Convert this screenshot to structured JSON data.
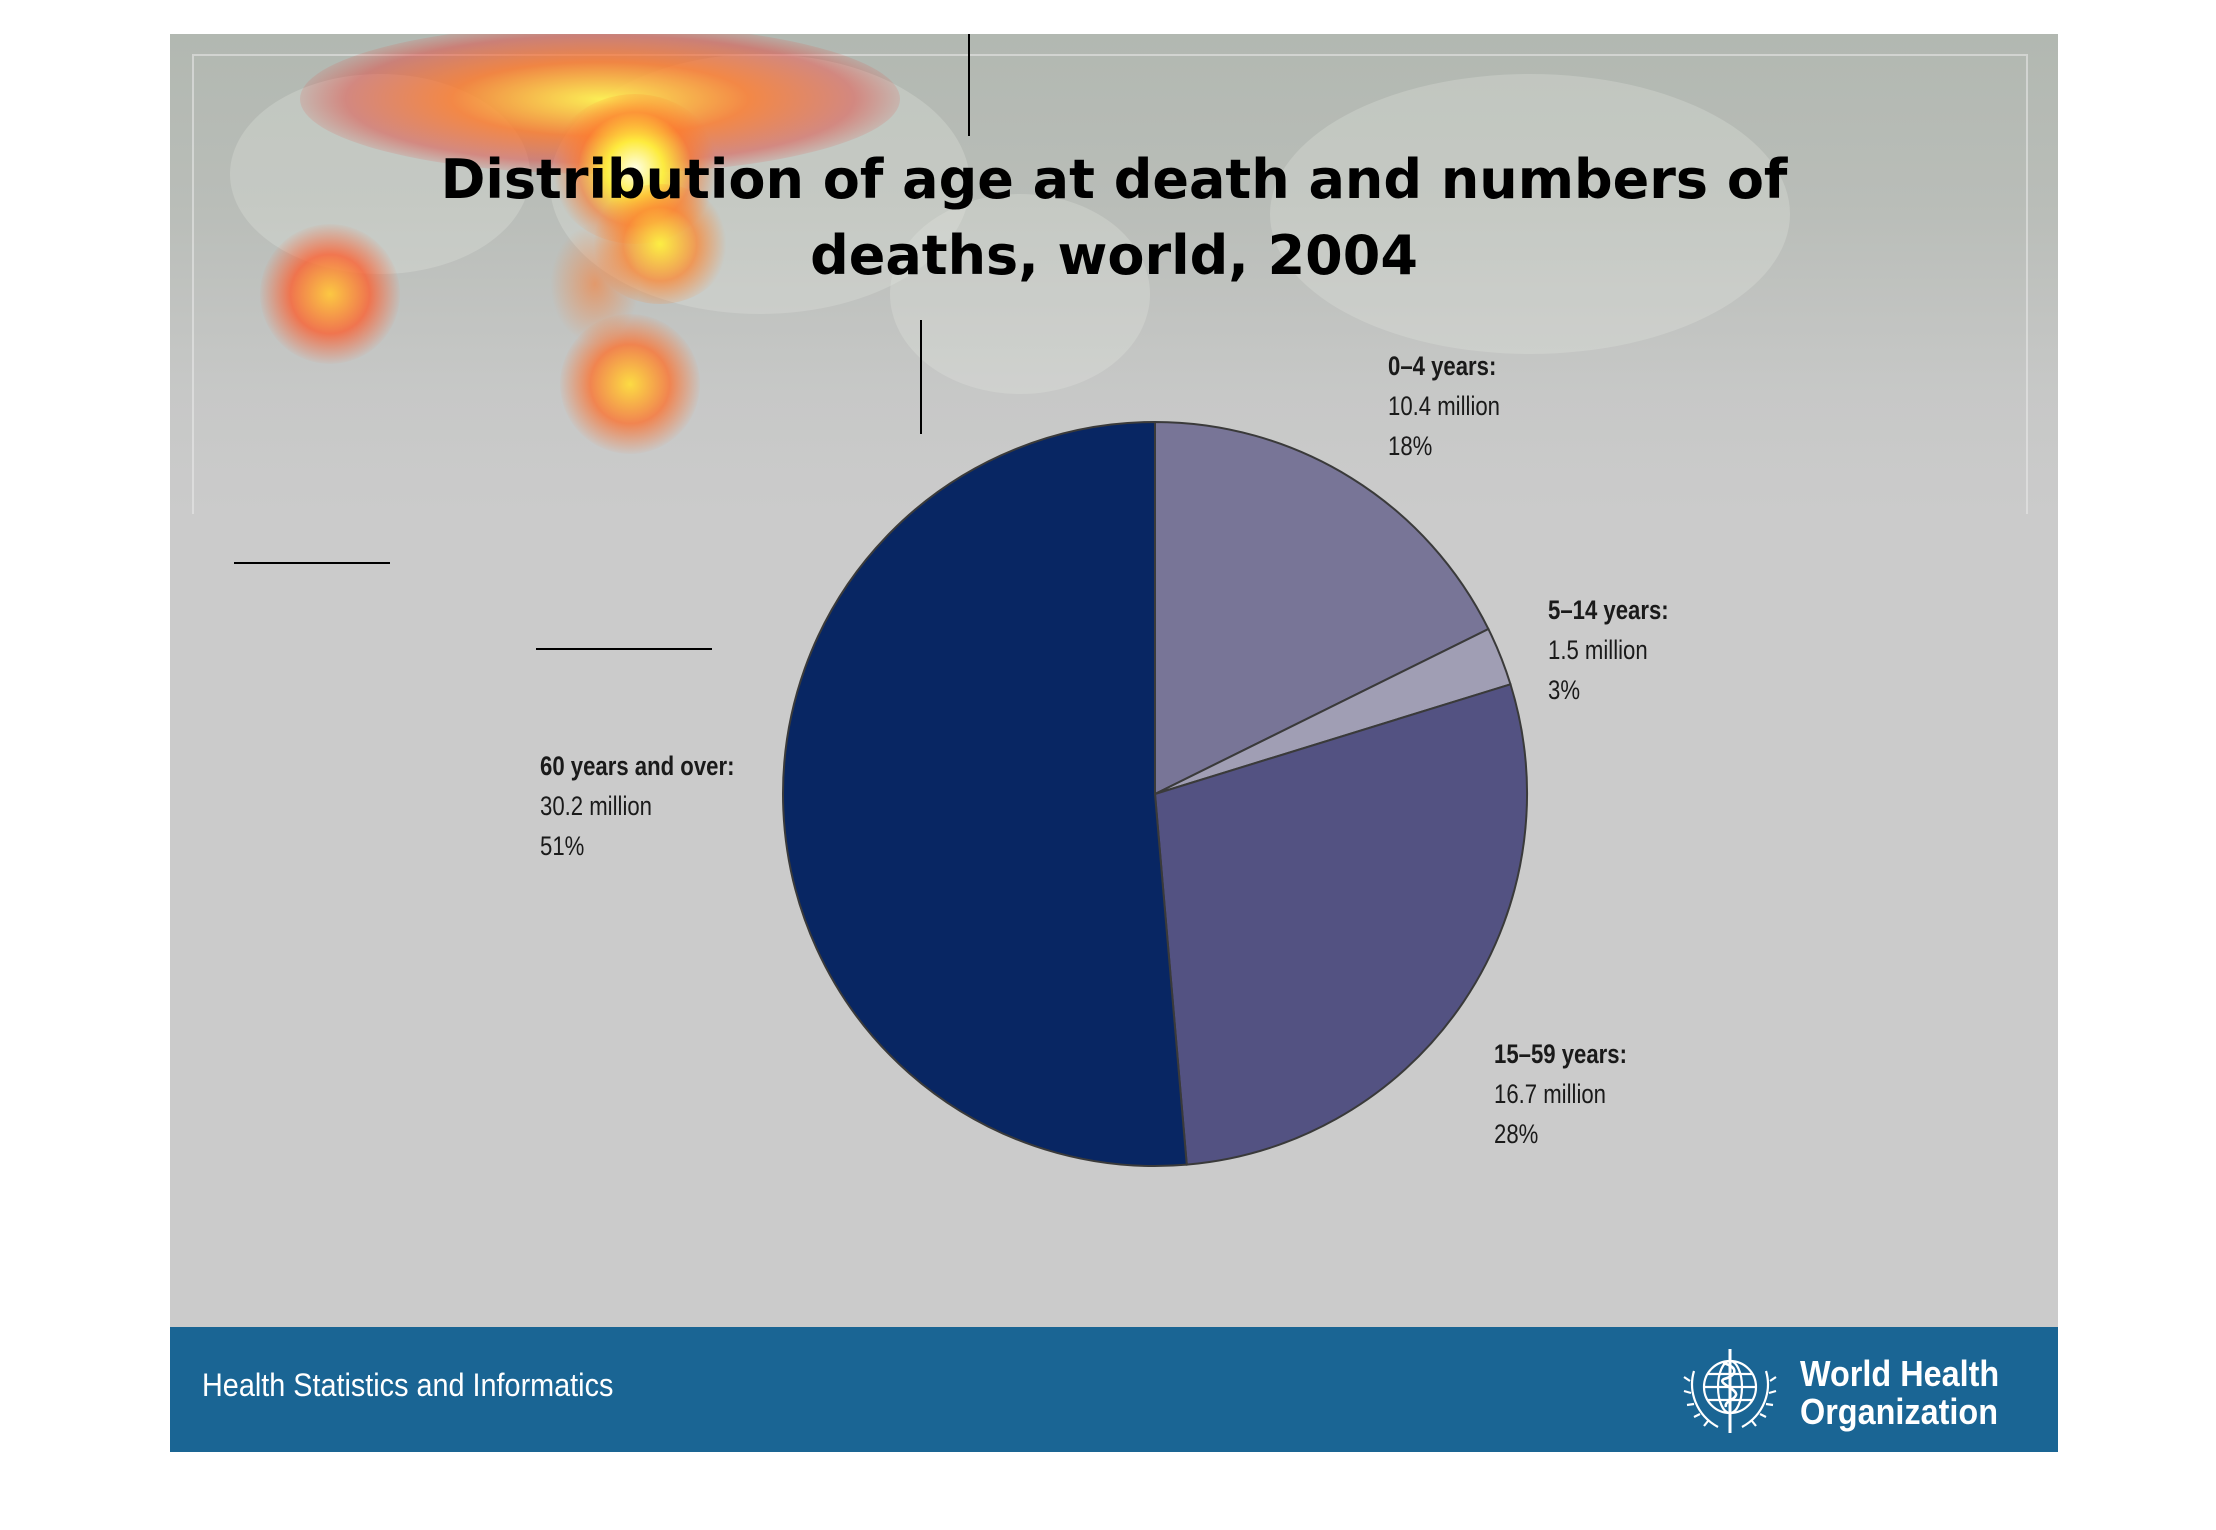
{
  "slide": {
    "title_line1": "Distribution of age at death and numbers of",
    "title_line2": "deaths, world, 2004"
  },
  "chart_data": {
    "type": "pie",
    "title": "Distribution of age at death and numbers of deaths, world, 2004",
    "slices": [
      {
        "label": "0–4 years:",
        "value_text": "10.4 million",
        "percent_text": "18%",
        "value": 10.4,
        "percent": 18,
        "color": "#787597"
      },
      {
        "label": "5–14 years:",
        "value_text": "1.5 million",
        "percent_text": "3%",
        "value": 1.5,
        "percent": 3,
        "color": "#a09eb4"
      },
      {
        "label": "15–59 years:",
        "value_text": "16.7 million",
        "percent_text": "28%",
        "value": 16.7,
        "percent": 28,
        "color": "#535282"
      },
      {
        "label": "60 years and over:",
        "value_text": "30.2 million",
        "percent_text": "51%",
        "value": 30.2,
        "percent": 51,
        "color": "#082663"
      }
    ],
    "start": "12 o'clock",
    "direction": "clockwise"
  },
  "footer": {
    "left_text": "Health Statistics and Informatics",
    "org_line1": "World Health",
    "org_line2": "Organization"
  },
  "icons": {
    "emblem": "who-emblem-icon"
  }
}
